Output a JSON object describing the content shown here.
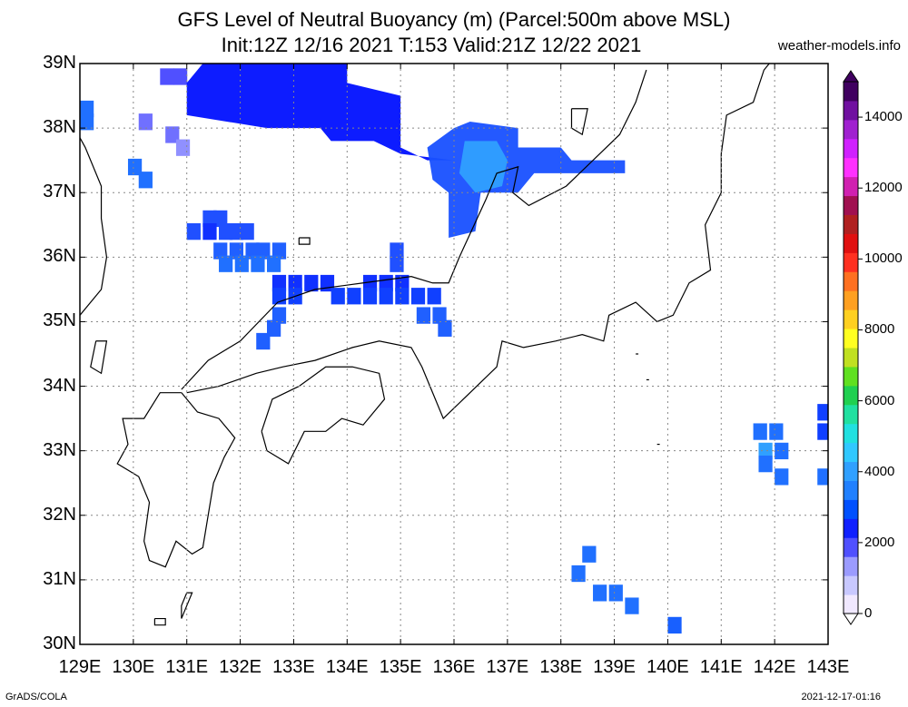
{
  "header": {
    "title_line1": "GFS Level of Neutral Buoyancy (m) (Parcel:500m above MSL)",
    "title_line2": "Init:12Z 12/16 2021 T:153 Valid:21Z 12/22 2021",
    "site": "weather-models.info"
  },
  "footer": {
    "left": "GrADS/COLA",
    "right": "2021-12-17-01:16"
  },
  "map": {
    "lon_range": [
      129,
      143
    ],
    "lat_range": [
      30,
      39
    ],
    "x_ticks": [
      "129E",
      "130E",
      "131E",
      "132E",
      "133E",
      "134E",
      "135E",
      "136E",
      "137E",
      "138E",
      "139E",
      "140E",
      "141E",
      "142E",
      "143E"
    ],
    "y_ticks": [
      "39N",
      "38N",
      "37N",
      "36N",
      "35N",
      "34N",
      "33N",
      "32N",
      "31N",
      "30N"
    ],
    "grid": "dotted"
  },
  "colorbar": {
    "labels": [
      "14000",
      "12000",
      "10000",
      "8000",
      "6000",
      "4000",
      "2000",
      "0"
    ],
    "colors": [
      "#f0e8ff",
      "#c8c8ff",
      "#9b9bff",
      "#5050ff",
      "#1020ff",
      "#0050ff",
      "#2080ff",
      "#30a0ff",
      "#30c8ff",
      "#20e0e0",
      "#20e0a0",
      "#20d050",
      "#60e020",
      "#c0e020",
      "#ffff20",
      "#ffd020",
      "#ffa020",
      "#ff7020",
      "#ff3020",
      "#e01010",
      "#b02020",
      "#a01050",
      "#d020b0",
      "#ff30ff",
      "#d020ff",
      "#a020d0",
      "#7010a0",
      "#400060"
    ]
  },
  "legend_scale": {
    "min": 0,
    "max": 15000
  }
}
